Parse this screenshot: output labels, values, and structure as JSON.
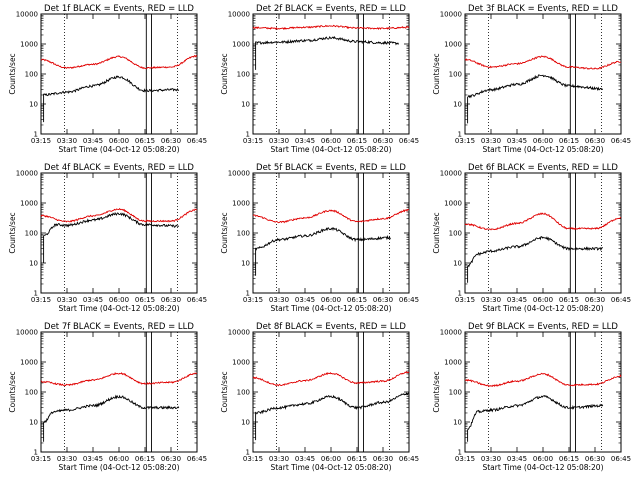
{
  "page": {
    "background": "#ffffff"
  },
  "colors": {
    "events": "#000000",
    "lld": "#e00000",
    "axes": "#000000"
  },
  "x_ticks": [
    "03:15",
    "03:30",
    "03:45",
    "06:00",
    "06:15",
    "06:30",
    "06:45"
  ],
  "y_ticks": [
    "1",
    "10",
    "100",
    "1000",
    "10000"
  ],
  "xlabel": "Start Time (04-Oct-12 05:08:20)",
  "ylabel": "Counts/sec",
  "chart_data": [
    {
      "type": "line",
      "title": "Det 1f BLACK = Events, RED = LLD",
      "xlabel": "Start Time (04-Oct-12 05:08:20)",
      "ylabel": "Counts/sec",
      "y_scale": "log",
      "ylim": [
        1,
        10000
      ],
      "x": [
        "03:15",
        "03:30",
        "03:45",
        "06:00",
        "06:15",
        "06:30",
        "06:45"
      ],
      "series": [
        {
          "name": "LLD",
          "profile": [
            [
              0,
              300
            ],
            [
              1,
              160
            ],
            [
              2,
              210
            ],
            [
              3,
              380
            ],
            [
              4,
              160
            ],
            [
              5,
              170
            ],
            [
              6,
              400
            ]
          ]
        },
        {
          "name": "Events",
          "profile": [
            [
              0.1,
              20
            ],
            [
              1,
              25
            ],
            [
              2,
              40
            ],
            [
              3,
              80
            ],
            [
              4,
              28
            ],
            [
              5.3,
              30
            ]
          ]
        }
      ]
    },
    {
      "type": "line",
      "title": "Det 2f BLACK = Events, RED = LLD",
      "xlabel": "Start Time (04-Oct-12 05:08:20)",
      "ylabel": "Counts/sec",
      "y_scale": "log",
      "ylim": [
        1,
        10000
      ],
      "x": [
        "03:15",
        "03:30",
        "03:45",
        "06:00",
        "06:15",
        "06:30",
        "06:45"
      ],
      "series": [
        {
          "name": "LLD",
          "profile": [
            [
              0,
              3500
            ],
            [
              1,
              3300
            ],
            [
              2,
              3600
            ],
            [
              3,
              4000
            ],
            [
              4,
              3400
            ],
            [
              5,
              3300
            ],
            [
              6,
              3600
            ]
          ]
        },
        {
          "name": "Events",
          "profile": [
            [
              0.1,
              1100
            ],
            [
              1,
              1150
            ],
            [
              2,
              1300
            ],
            [
              3,
              1600
            ],
            [
              4,
              1200
            ],
            [
              5,
              1100
            ],
            [
              5.6,
              1050
            ]
          ]
        }
      ]
    },
    {
      "type": "line",
      "title": "Det 3f BLACK = Events, RED = LLD",
      "xlabel": "Start Time (04-Oct-12 05:08:20)",
      "ylabel": "Counts/sec",
      "y_scale": "log",
      "ylim": [
        1,
        10000
      ],
      "x": [
        "03:15",
        "03:30",
        "03:45",
        "06:00",
        "06:15",
        "06:30",
        "06:45"
      ],
      "series": [
        {
          "name": "LLD",
          "profile": [
            [
              0,
              300
            ],
            [
              1,
              170
            ],
            [
              2,
              220
            ],
            [
              3,
              380
            ],
            [
              4,
              170
            ],
            [
              5,
              150
            ],
            [
              6,
              260
            ]
          ]
        },
        {
          "name": "Events",
          "profile": [
            [
              0.1,
              18
            ],
            [
              1,
              30
            ],
            [
              2,
              45
            ],
            [
              3,
              90
            ],
            [
              4,
              40
            ],
            [
              5.3,
              32
            ]
          ]
        }
      ]
    },
    {
      "type": "line",
      "title": "Det 4f BLACK = Events, RED = LLD",
      "xlabel": "Start Time (04-Oct-12 05:08:20)",
      "ylabel": "Counts/sec",
      "y_scale": "log",
      "ylim": [
        1,
        10000
      ],
      "x": [
        "03:15",
        "03:30",
        "03:45",
        "06:00",
        "06:15",
        "06:30",
        "06:45"
      ],
      "series": [
        {
          "name": "LLD",
          "profile": [
            [
              0,
              380
            ],
            [
              1,
              240
            ],
            [
              2,
              370
            ],
            [
              3,
              620
            ],
            [
              4,
              250
            ],
            [
              5,
              250
            ],
            [
              6,
              600
            ]
          ]
        },
        {
          "name": "Events",
          "profile": [
            [
              0.1,
              80
            ],
            [
              0.6,
              190
            ],
            [
              1,
              180
            ],
            [
              2,
              270
            ],
            [
              3,
              440
            ],
            [
              4,
              190
            ],
            [
              5.3,
              170
            ]
          ]
        }
      ]
    },
    {
      "type": "line",
      "title": "Det 5f BLACK = Events, RED = LLD",
      "xlabel": "Start Time (04-Oct-12 05:08:20)",
      "ylabel": "Counts/sec",
      "y_scale": "log",
      "ylim": [
        1,
        10000
      ],
      "x": [
        "03:15",
        "03:30",
        "03:45",
        "06:00",
        "06:15",
        "06:30",
        "06:45"
      ],
      "series": [
        {
          "name": "LLD",
          "profile": [
            [
              0,
              380
            ],
            [
              1,
              230
            ],
            [
              2,
              320
            ],
            [
              3,
              560
            ],
            [
              4,
              240
            ],
            [
              5,
              300
            ],
            [
              6,
              580
            ]
          ]
        },
        {
          "name": "Events",
          "profile": [
            [
              0.1,
              30
            ],
            [
              1,
              60
            ],
            [
              2,
              80
            ],
            [
              3,
              140
            ],
            [
              4,
              60
            ],
            [
              5.3,
              70
            ]
          ]
        }
      ]
    },
    {
      "type": "line",
      "title": "Det 6f BLACK = Events, RED = LLD",
      "xlabel": "Start Time (04-Oct-12 05:08:20)",
      "ylabel": "Counts/sec",
      "y_scale": "log",
      "ylim": [
        1,
        10000
      ],
      "x": [
        "03:15",
        "03:30",
        "03:45",
        "06:00",
        "06:15",
        "06:30",
        "06:45"
      ],
      "series": [
        {
          "name": "LLD",
          "profile": [
            [
              0,
              200
            ],
            [
              1,
              130
            ],
            [
              2,
              210
            ],
            [
              3,
              440
            ],
            [
              4,
              140
            ],
            [
              5,
              140
            ],
            [
              6,
              320
            ]
          ]
        },
        {
          "name": "Events",
          "profile": [
            [
              0.1,
              8
            ],
            [
              0.5,
              20
            ],
            [
              1,
              25
            ],
            [
              2,
              35
            ],
            [
              3,
              70
            ],
            [
              4,
              30
            ],
            [
              5.3,
              30
            ]
          ]
        }
      ]
    },
    {
      "type": "line",
      "title": "Det 7f BLACK = Events, RED = LLD",
      "xlabel": "Start Time (04-Oct-12 05:08:20)",
      "ylabel": "Counts/sec",
      "y_scale": "log",
      "ylim": [
        1,
        10000
      ],
      "x": [
        "03:15",
        "03:30",
        "03:45",
        "06:00",
        "06:15",
        "06:30",
        "06:45"
      ],
      "series": [
        {
          "name": "LLD",
          "profile": [
            [
              0,
              220
            ],
            [
              1,
              170
            ],
            [
              2,
              250
            ],
            [
              3,
              420
            ],
            [
              4,
              190
            ],
            [
              5,
              210
            ],
            [
              6,
              420
            ]
          ]
        },
        {
          "name": "Events",
          "profile": [
            [
              0.1,
              10
            ],
            [
              0.5,
              22
            ],
            [
              1,
              25
            ],
            [
              2,
              35
            ],
            [
              3,
              70
            ],
            [
              4,
              30
            ],
            [
              5.3,
              30
            ]
          ]
        }
      ]
    },
    {
      "type": "line",
      "title": "Det 8f BLACK = Events, RED = LLD",
      "xlabel": "Start Time (04-Oct-12 05:08:20)",
      "ylabel": "Counts/sec",
      "y_scale": "log",
      "ylim": [
        1,
        10000
      ],
      "x": [
        "03:15",
        "03:30",
        "03:45",
        "06:00",
        "06:15",
        "06:30",
        "06:45"
      ],
      "series": [
        {
          "name": "LLD",
          "profile": [
            [
              0,
              300
            ],
            [
              1,
              170
            ],
            [
              2,
              240
            ],
            [
              3,
              420
            ],
            [
              4,
              200
            ],
            [
              5,
              230
            ],
            [
              6,
              460
            ]
          ]
        },
        {
          "name": "Events",
          "profile": [
            [
              0.1,
              20
            ],
            [
              1,
              30
            ],
            [
              2,
              40
            ],
            [
              3,
              70
            ],
            [
              4,
              30
            ],
            [
              5,
              45
            ],
            [
              6,
              90
            ]
          ]
        }
      ]
    },
    {
      "type": "line",
      "title": "Det 9f BLACK = Events, RED = LLD",
      "xlabel": "Start Time (04-Oct-12 05:08:20)",
      "ylabel": "Counts/sec",
      "y_scale": "log",
      "ylim": [
        1,
        10000
      ],
      "x": [
        "03:15",
        "03:30",
        "03:45",
        "06:00",
        "06:15",
        "06:30",
        "06:45"
      ],
      "series": [
        {
          "name": "LLD",
          "profile": [
            [
              0,
              250
            ],
            [
              1,
              160
            ],
            [
              2,
              230
            ],
            [
              3,
              400
            ],
            [
              4,
              170
            ],
            [
              5,
              180
            ],
            [
              6,
              340
            ]
          ]
        },
        {
          "name": "Events",
          "profile": [
            [
              0.1,
              6
            ],
            [
              0.5,
              22
            ],
            [
              1,
              25
            ],
            [
              2,
              35
            ],
            [
              3,
              70
            ],
            [
              4,
              30
            ],
            [
              5.3,
              35
            ]
          ]
        }
      ]
    }
  ]
}
